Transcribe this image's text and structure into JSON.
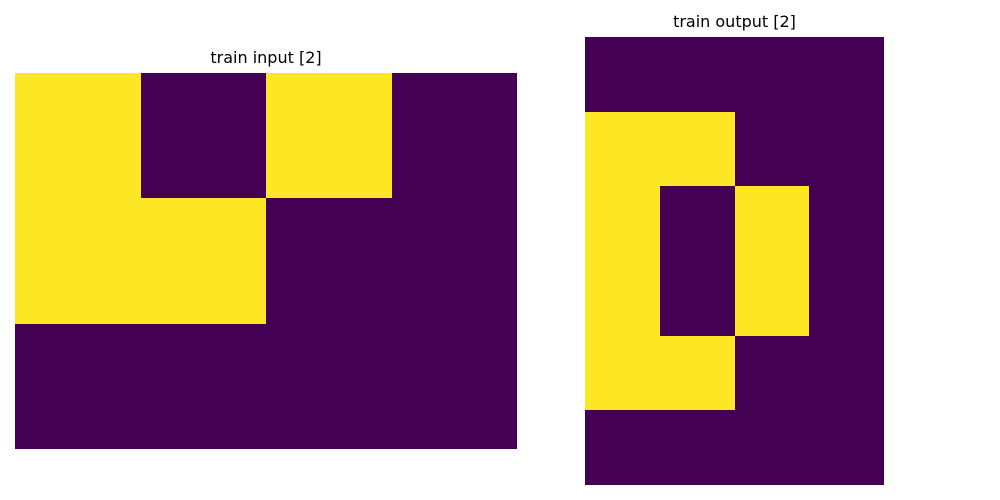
{
  "colors": {
    "0": "#440154",
    "1": "#fde725"
  },
  "panels": {
    "input": {
      "title": "train input [2]",
      "grid": [
        [
          1,
          0,
          1,
          0
        ],
        [
          1,
          1,
          0,
          0
        ],
        [
          0,
          0,
          0,
          0
        ]
      ]
    },
    "output": {
      "title": "train output [2]",
      "grid": [
        [
          0,
          0,
          0,
          0
        ],
        [
          1,
          1,
          0,
          0
        ],
        [
          1,
          0,
          1,
          0
        ],
        [
          1,
          0,
          1,
          0
        ],
        [
          1,
          1,
          0,
          0
        ],
        [
          0,
          0,
          0,
          0
        ]
      ]
    }
  }
}
